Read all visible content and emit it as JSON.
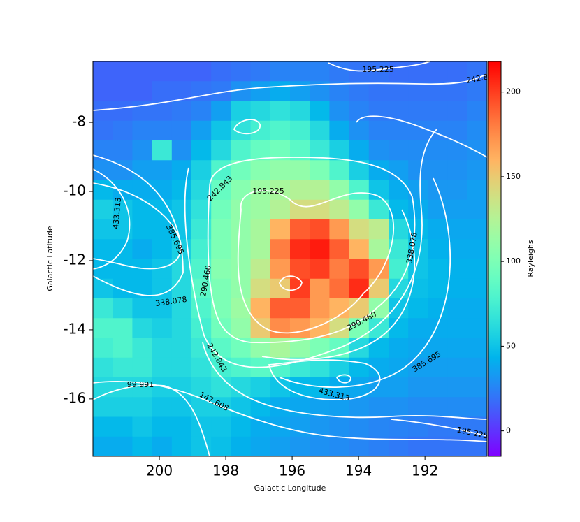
{
  "chart_data": {
    "type": "heatmap",
    "xlabel": "Galactic Longitude",
    "ylabel": "Galactic Latitude",
    "colorbar_label": "Rayleighs",
    "colormap": "rainbow",
    "xlim": [
      202,
      190.13
    ],
    "ylim": [
      -17.66,
      -6.24
    ],
    "xticks": [
      200,
      198,
      196,
      194,
      192
    ],
    "yticks": [
      -8,
      -10,
      -12,
      -14,
      -16
    ],
    "clim": [
      -15,
      218
    ],
    "cticks": [
      0,
      50,
      100,
      150,
      200
    ],
    "contour_color": "#ffffff",
    "contour_levels": [
      99.991,
      147.608,
      195.225,
      242.843,
      {
        "value": 290.46,
        "label": "290.460"
      },
      338.078,
      385.695,
      433.313
    ],
    "z": [
      [
        15,
        15,
        15,
        15,
        15,
        15,
        18,
        20,
        22,
        25,
        25,
        25,
        22,
        20,
        20,
        18,
        18,
        18,
        18,
        20
      ],
      [
        15,
        15,
        15,
        18,
        18,
        20,
        22,
        30,
        35,
        40,
        35,
        30,
        25,
        22,
        20,
        20,
        20,
        20,
        20,
        22
      ],
      [
        18,
        18,
        20,
        20,
        22,
        25,
        35,
        55,
        60,
        65,
        60,
        45,
        30,
        25,
        22,
        22,
        22,
        22,
        22,
        25
      ],
      [
        20,
        22,
        25,
        25,
        25,
        35,
        50,
        65,
        75,
        80,
        75,
        60,
        40,
        30,
        25,
        25,
        25,
        25,
        25,
        28
      ],
      [
        25,
        25,
        30,
        70,
        30,
        45,
        60,
        80,
        90,
        95,
        85,
        70,
        55,
        40,
        30,
        28,
        28,
        28,
        28,
        30
      ],
      [
        30,
        30,
        35,
        35,
        40,
        55,
        80,
        95,
        105,
        110,
        110,
        100,
        80,
        55,
        40,
        35,
        30,
        30,
        30,
        32
      ],
      [
        45,
        40,
        40,
        40,
        45,
        60,
        90,
        105,
        115,
        120,
        125,
        125,
        110,
        80,
        50,
        40,
        35,
        32,
        32,
        35
      ],
      [
        55,
        50,
        45,
        45,
        50,
        65,
        95,
        110,
        115,
        125,
        140,
        140,
        130,
        110,
        70,
        45,
        40,
        35,
        35,
        35
      ],
      [
        50,
        50,
        45,
        45,
        50,
        70,
        100,
        110,
        120,
        160,
        190,
        195,
        170,
        140,
        130,
        60,
        45,
        40,
        38,
        38
      ],
      [
        45,
        45,
        40,
        45,
        55,
        75,
        100,
        110,
        120,
        180,
        205,
        210,
        190,
        160,
        120,
        70,
        50,
        42,
        40,
        40
      ],
      [
        45,
        45,
        45,
        50,
        60,
        80,
        105,
        110,
        130,
        170,
        195,
        200,
        180,
        195,
        170,
        75,
        50,
        45,
        42,
        42
      ],
      [
        50,
        45,
        45,
        50,
        60,
        85,
        100,
        110,
        140,
        150,
        200,
        170,
        185,
        205,
        150,
        60,
        48,
        45,
        42,
        42
      ],
      [
        70,
        60,
        50,
        50,
        60,
        80,
        100,
        115,
        160,
        190,
        190,
        170,
        160,
        150,
        110,
        50,
        45,
        42,
        40,
        40
      ],
      [
        80,
        80,
        60,
        55,
        60,
        75,
        95,
        110,
        150,
        175,
        170,
        160,
        140,
        100,
        70,
        45,
        40,
        40,
        40,
        40
      ],
      [
        75,
        80,
        70,
        60,
        60,
        70,
        85,
        95,
        110,
        120,
        110,
        100,
        90,
        60,
        45,
        40,
        38,
        38,
        38,
        38
      ],
      [
        65,
        70,
        70,
        60,
        60,
        65,
        75,
        80,
        85,
        80,
        70,
        65,
        55,
        45,
        40,
        38,
        35,
        35,
        35,
        35
      ],
      [
        60,
        60,
        60,
        55,
        55,
        60,
        65,
        60,
        55,
        50,
        45,
        45,
        40,
        38,
        35,
        35,
        32,
        32,
        32,
        32
      ],
      [
        55,
        55,
        55,
        50,
        50,
        55,
        55,
        50,
        45,
        40,
        38,
        36,
        35,
        32,
        30,
        30,
        28,
        28,
        28,
        28
      ],
      [
        45,
        45,
        50,
        45,
        45,
        50,
        50,
        45,
        40,
        38,
        35,
        32,
        30,
        28,
        26,
        25,
        24,
        22,
        22,
        22
      ],
      [
        40,
        40,
        45,
        40,
        45,
        50,
        48,
        42,
        38,
        35,
        32,
        30,
        28,
        26,
        24,
        22,
        20,
        20,
        20,
        20
      ]
    ]
  }
}
